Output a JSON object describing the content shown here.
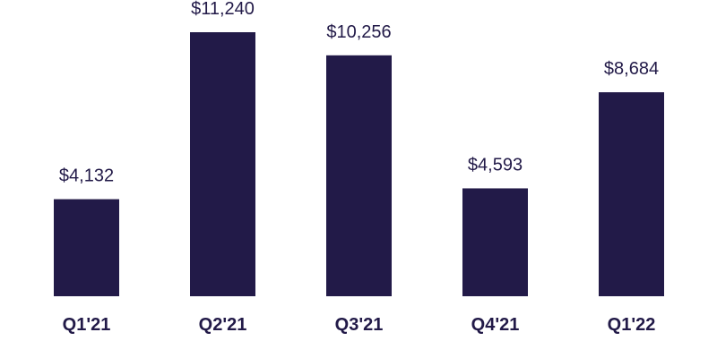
{
  "chart_data": {
    "type": "bar",
    "categories": [
      "Q1'21",
      "Q2'21",
      "Q3'21",
      "Q4'21",
      "Q1'22"
    ],
    "values": [
      4132,
      11240,
      10256,
      4593,
      8684
    ],
    "value_prefix": "$",
    "title": "",
    "xlabel": "",
    "ylabel": "",
    "ylim": [
      0,
      12000
    ],
    "grid": false,
    "legend": "none",
    "colors": {
      "bar": "#221a48",
      "text": "#221a48"
    }
  }
}
